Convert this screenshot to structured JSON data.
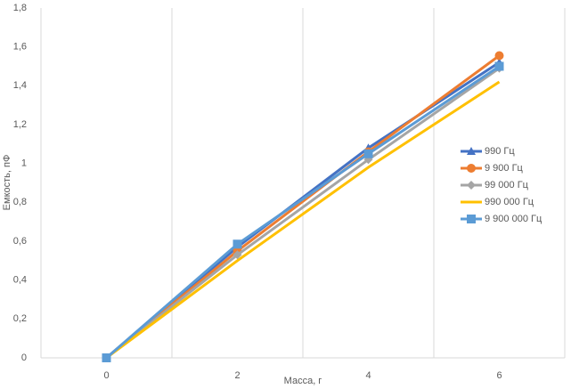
{
  "chart_data": {
    "type": "line",
    "x_label": "Масса, г",
    "y_label": "Емкость, пФ",
    "categories": [
      "0",
      "2",
      "4",
      "6"
    ],
    "series": [
      {
        "name": "990 Гц",
        "color": "#4472c4",
        "marker": "triangle",
        "values": [
          0,
          0.57,
          1.08,
          1.52
        ]
      },
      {
        "name": "9 900 Гц",
        "color": "#ed7d31",
        "marker": "circle",
        "values": [
          0,
          0.55,
          1.06,
          1.555
        ]
      },
      {
        "name": "99 000 Гц",
        "color": "#a5a5a5",
        "marker": "diamond",
        "values": [
          0,
          0.53,
          1.02,
          1.49
        ]
      },
      {
        "name": "990 000 Гц",
        "color": "#ffc000",
        "marker": "none",
        "values": [
          0,
          0.5,
          0.98,
          1.42
        ]
      },
      {
        "name": "9 900 000 Гц",
        "color": "#5b9bd5",
        "marker": "square",
        "values": [
          0,
          0.585,
          1.05,
          1.5
        ]
      }
    ],
    "ylim": [
      0,
      1.8
    ],
    "yticks": [
      0,
      {
        "value": 0.2,
        "label": "0,2"
      },
      {
        "value": 0.4,
        "label": "0,4"
      },
      {
        "value": 0.6,
        "label": "0,6"
      },
      {
        "value": 0.8,
        "label": "0,8"
      },
      1,
      {
        "value": 1.2,
        "label": "1,2"
      },
      {
        "value": 1.4,
        "label": "1,4"
      },
      {
        "value": 1.6,
        "label": "1,6"
      },
      {
        "value": 1.8,
        "label": "1,8"
      }
    ],
    "grid": true,
    "legend": "right"
  }
}
